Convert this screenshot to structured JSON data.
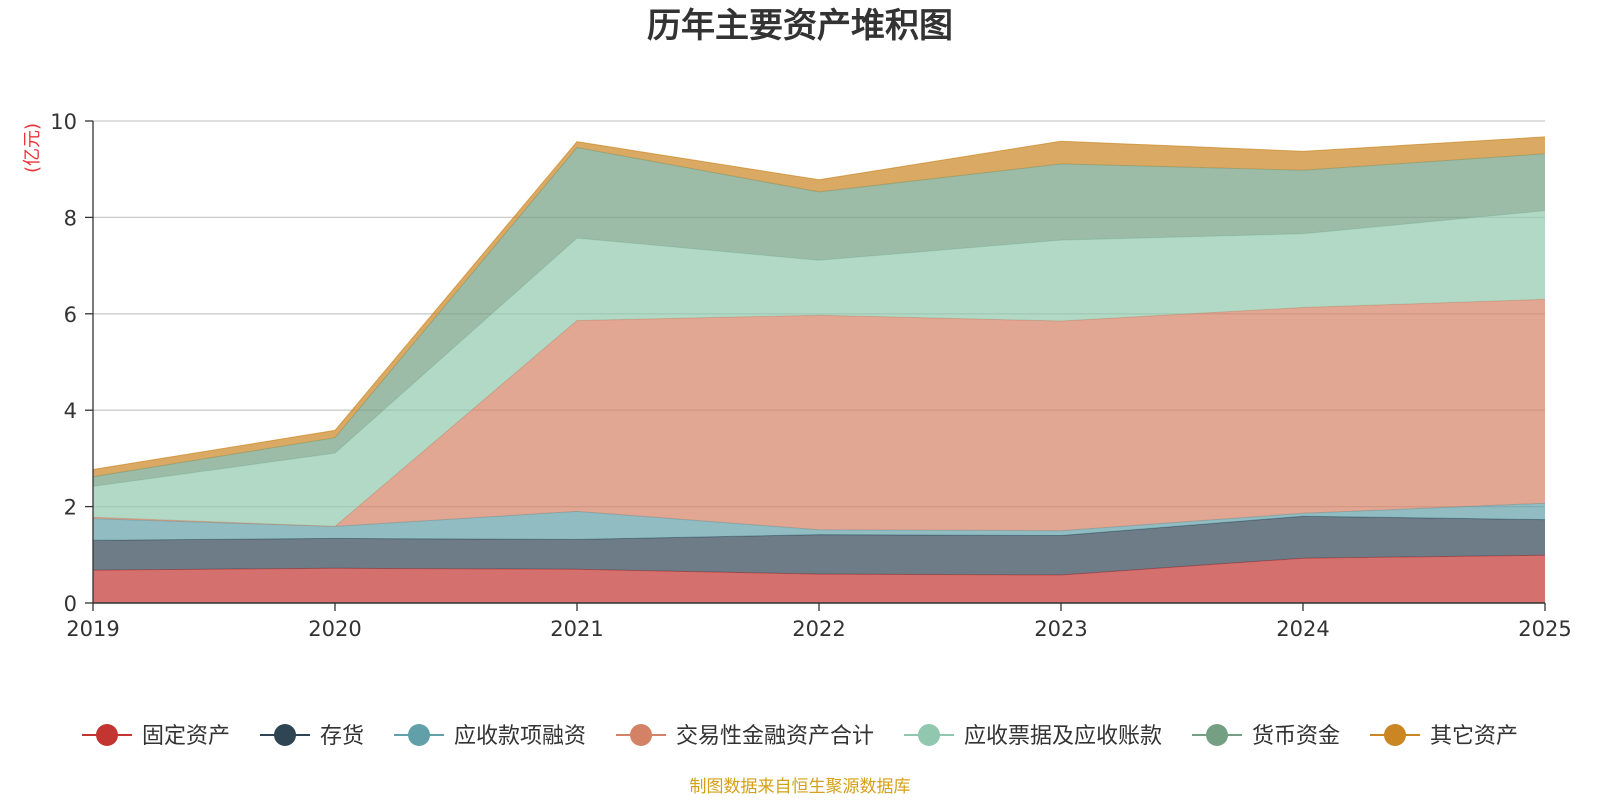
{
  "chart_data": {
    "type": "area",
    "stacked": true,
    "title": "历年主要资产堆积图",
    "ylabel": "(亿元)",
    "xlabel": "",
    "ylim": [
      0,
      10
    ],
    "yticks": [
      0,
      2,
      4,
      6,
      8,
      10
    ],
    "categories": [
      "2019",
      "2020",
      "2021",
      "2022",
      "2023",
      "2024",
      "2025"
    ],
    "legend_position": "bottom",
    "grid": true,
    "series": [
      {
        "name": "固定资产",
        "color": "#c23531",
        "values": [
          0.68,
          0.72,
          0.7,
          0.6,
          0.58,
          0.93,
          0.99
        ]
      },
      {
        "name": "存货",
        "color": "#2f4554",
        "values": [
          0.62,
          0.62,
          0.62,
          0.82,
          0.82,
          0.87,
          0.74
        ]
      },
      {
        "name": "应收款项融资",
        "color": "#61a0a8",
        "values": [
          0.45,
          0.25,
          0.58,
          0.1,
          0.1,
          0.06,
          0.34
        ]
      },
      {
        "name": "交易性金融资产合计",
        "color": "#d48265",
        "values": [
          0.03,
          0.0,
          3.96,
          4.45,
          4.35,
          4.27,
          4.23
        ]
      },
      {
        "name": "应收票据及应收账款",
        "color": "#91c7ae",
        "values": [
          0.64,
          1.52,
          1.71,
          1.14,
          1.68,
          1.53,
          1.84
        ]
      },
      {
        "name": "货币资金",
        "color": "#749f83",
        "values": [
          0.2,
          0.32,
          1.88,
          1.42,
          1.58,
          1.32,
          1.18
        ]
      },
      {
        "name": "其它资产",
        "color": "#ca8622",
        "values": [
          0.15,
          0.15,
          0.12,
          0.25,
          0.47,
          0.39,
          0.35
        ]
      }
    ]
  },
  "footer": {
    "source": "制图数据来自恒生聚源数据库"
  }
}
